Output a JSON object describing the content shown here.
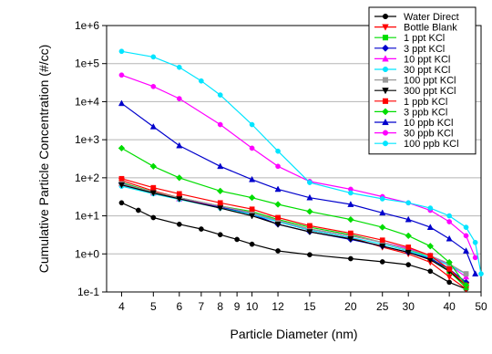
{
  "chart_data": {
    "type": "line",
    "title": "",
    "xlabel": "Particle Diameter (nm)",
    "ylabel": "Cumulative Particle Concentration (#/cc)",
    "xscale": "log",
    "yscale": "log",
    "xlim": [
      3.6,
      50
    ],
    "ylim": [
      0.1,
      1000000
    ],
    "grid": "horizontal",
    "legend_position": "top-right",
    "x_ticks": [
      4,
      5,
      6,
      7,
      8,
      9,
      10,
      12,
      15,
      20,
      25,
      30,
      40,
      50
    ],
    "x_tick_labels": [
      "4",
      "5",
      "6",
      "7",
      "8",
      "9",
      "10",
      "12",
      "15",
      "20",
      "25",
      "30",
      "40",
      "50"
    ],
    "y_ticks": [
      0.1,
      1,
      10,
      100,
      1000,
      10000,
      100000,
      1000000
    ],
    "y_tick_labels": [
      "1e-1",
      "1e+0",
      "1e+1",
      "1e+2",
      "1e+3",
      "1e+4",
      "1e+5",
      "1e+6"
    ],
    "series": [
      {
        "name": "Water Direct",
        "color": "#000000",
        "marker": "circle",
        "points": [
          [
            4,
            22
          ],
          [
            4.5,
            14
          ],
          [
            5,
            9
          ],
          [
            6,
            6
          ],
          [
            7,
            4.5
          ],
          [
            8,
            3.2
          ],
          [
            9,
            2.4
          ],
          [
            10,
            1.8
          ],
          [
            12,
            1.2
          ],
          [
            15,
            0.95
          ],
          [
            20,
            0.75
          ],
          [
            25,
            0.62
          ],
          [
            30,
            0.52
          ],
          [
            35,
            0.35
          ],
          [
            40,
            0.18
          ],
          [
            45,
            0.12
          ]
        ]
      },
      {
        "name": "Bottle Blank",
        "color": "#ff0000",
        "marker": "triangle-down",
        "points": [
          [
            4,
            85
          ],
          [
            5,
            45
          ],
          [
            6,
            30
          ],
          [
            8,
            17
          ],
          [
            10,
            12
          ],
          [
            12,
            7
          ],
          [
            15,
            4.2
          ],
          [
            20,
            2.7
          ],
          [
            25,
            1.5
          ],
          [
            30,
            1.0
          ],
          [
            35,
            0.6
          ],
          [
            40,
            0.25
          ],
          [
            45,
            0.12
          ]
        ]
      },
      {
        "name": "1 ppt KCl",
        "color": "#00dd00",
        "marker": "square",
        "points": [
          [
            4,
            75
          ],
          [
            5,
            42
          ],
          [
            6,
            30
          ],
          [
            8,
            18
          ],
          [
            10,
            13
          ],
          [
            12,
            8
          ],
          [
            15,
            5
          ],
          [
            20,
            3.2
          ],
          [
            25,
            2
          ],
          [
            30,
            1.3
          ],
          [
            35,
            0.8
          ],
          [
            40,
            0.35
          ],
          [
            45,
            0.13
          ]
        ]
      },
      {
        "name": "3 ppt KCl",
        "color": "#0000cc",
        "marker": "diamond",
        "points": [
          [
            4,
            72
          ],
          [
            5,
            40
          ],
          [
            6,
            28
          ],
          [
            8,
            17
          ],
          [
            10,
            11
          ],
          [
            12,
            6
          ],
          [
            15,
            3.8
          ],
          [
            20,
            2.4
          ],
          [
            25,
            1.6
          ],
          [
            30,
            1.1
          ],
          [
            35,
            0.75
          ],
          [
            40,
            0.4
          ],
          [
            45,
            0.18
          ]
        ]
      },
      {
        "name": "10 ppt KCl",
        "color": "#ff00ff",
        "marker": "triangle-up",
        "points": [
          [
            4,
            70
          ],
          [
            5,
            40
          ],
          [
            6,
            28
          ],
          [
            8,
            18
          ],
          [
            10,
            12
          ],
          [
            12,
            7.5
          ],
          [
            15,
            4.5
          ],
          [
            20,
            3
          ],
          [
            25,
            2
          ],
          [
            30,
            1.4
          ],
          [
            35,
            0.9
          ],
          [
            40,
            0.5
          ],
          [
            45,
            0.25
          ]
        ]
      },
      {
        "name": "30 ppt KCl",
        "color": "#00e5ff",
        "marker": "circle",
        "points": [
          [
            4,
            60
          ],
          [
            5,
            38
          ],
          [
            6,
            27
          ],
          [
            8,
            16
          ],
          [
            10,
            11
          ],
          [
            12,
            7
          ],
          [
            15,
            4.2
          ],
          [
            20,
            2.7
          ],
          [
            25,
            1.8
          ],
          [
            30,
            1.2
          ],
          [
            35,
            0.8
          ],
          [
            40,
            0.5
          ],
          [
            45,
            0.3
          ]
        ]
      },
      {
        "name": "100 ppt KCl",
        "color": "#999999",
        "marker": "square",
        "points": [
          [
            4,
            70
          ],
          [
            5,
            42
          ],
          [
            6,
            30
          ],
          [
            8,
            18
          ],
          [
            10,
            12
          ],
          [
            12,
            7.5
          ],
          [
            15,
            4.5
          ],
          [
            20,
            3
          ],
          [
            25,
            2
          ],
          [
            30,
            1.3
          ],
          [
            35,
            0.9
          ],
          [
            40,
            0.55
          ],
          [
            45,
            0.3
          ]
        ]
      },
      {
        "name": "300 ppt KCl",
        "color": "#000000",
        "marker": "triangle-down",
        "points": [
          [
            4,
            65
          ],
          [
            5,
            40
          ],
          [
            6,
            28
          ],
          [
            8,
            16
          ],
          [
            10,
            10
          ],
          [
            12,
            6
          ],
          [
            15,
            3.8
          ],
          [
            20,
            2.5
          ],
          [
            25,
            1.6
          ],
          [
            30,
            1.1
          ],
          [
            35,
            0.7
          ],
          [
            40,
            0.35
          ],
          [
            45,
            0.15
          ]
        ]
      },
      {
        "name": "1 ppb KCl",
        "color": "#ff0000",
        "marker": "square",
        "points": [
          [
            4,
            95
          ],
          [
            5,
            55
          ],
          [
            6,
            38
          ],
          [
            8,
            22
          ],
          [
            10,
            15
          ],
          [
            12,
            9
          ],
          [
            15,
            5.5
          ],
          [
            20,
            3.5
          ],
          [
            25,
            2.3
          ],
          [
            30,
            1.5
          ],
          [
            35,
            0.9
          ],
          [
            40,
            0.4
          ],
          [
            45,
            0.15
          ]
        ]
      },
      {
        "name": "3 ppb KCl",
        "color": "#00dd00",
        "marker": "diamond",
        "points": [
          [
            4,
            600
          ],
          [
            5,
            200
          ],
          [
            6,
            100
          ],
          [
            8,
            45
          ],
          [
            10,
            30
          ],
          [
            12,
            20
          ],
          [
            15,
            13
          ],
          [
            20,
            8
          ],
          [
            25,
            5
          ],
          [
            30,
            3
          ],
          [
            35,
            1.6
          ],
          [
            40,
            0.6
          ],
          [
            45,
            0.15
          ]
        ]
      },
      {
        "name": "10 ppb KCl",
        "color": "#0000cc",
        "marker": "triangle-up",
        "points": [
          [
            4,
            9000
          ],
          [
            5,
            2200
          ],
          [
            6,
            700
          ],
          [
            8,
            200
          ],
          [
            10,
            90
          ],
          [
            12,
            50
          ],
          [
            15,
            30
          ],
          [
            20,
            20
          ],
          [
            25,
            12
          ],
          [
            30,
            8
          ],
          [
            35,
            5
          ],
          [
            40,
            2.5
          ],
          [
            45,
            1.2
          ],
          [
            48,
            0.3
          ]
        ]
      },
      {
        "name": "30 ppb KCl",
        "color": "#ff00ff",
        "marker": "circle",
        "points": [
          [
            4,
            50000
          ],
          [
            5,
            25000
          ],
          [
            6,
            12000
          ],
          [
            8,
            2500
          ],
          [
            10,
            600
          ],
          [
            12,
            200
          ],
          [
            15,
            80
          ],
          [
            20,
            50
          ],
          [
            25,
            32
          ],
          [
            30,
            22
          ],
          [
            35,
            14
          ],
          [
            40,
            7
          ],
          [
            45,
            3
          ],
          [
            48,
            0.8
          ]
        ]
      },
      {
        "name": "100 ppb KCl",
        "color": "#00e5ff",
        "marker": "circle",
        "points": [
          [
            4,
            210000
          ],
          [
            5,
            150000
          ],
          [
            6,
            80000
          ],
          [
            7,
            35000
          ],
          [
            8,
            15000
          ],
          [
            10,
            2500
          ],
          [
            12,
            500
          ],
          [
            15,
            75
          ],
          [
            20,
            40
          ],
          [
            25,
            28
          ],
          [
            30,
            22
          ],
          [
            35,
            16
          ],
          [
            40,
            10
          ],
          [
            45,
            5
          ],
          [
            48,
            2
          ],
          [
            50,
            0.3
          ]
        ]
      }
    ]
  }
}
